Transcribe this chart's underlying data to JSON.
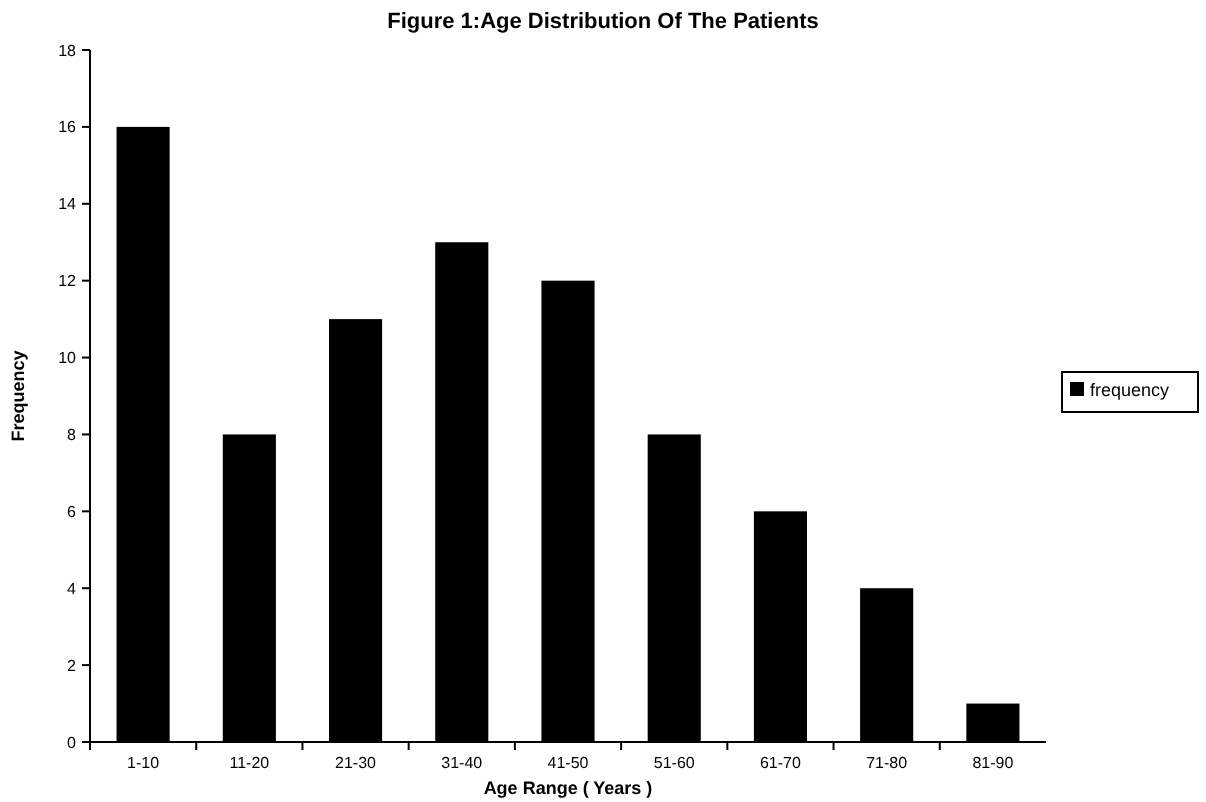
{
  "chart_data": {
    "type": "bar",
    "title": "Figure 1:Age Distribution Of The Patients",
    "xlabel": "Age Range ( Years )",
    "ylabel": "Frequency",
    "categories": [
      "1-10",
      "11-20",
      "21-30",
      "31-40",
      "41-50",
      "51-60",
      "61-70",
      "71-80",
      "81-90"
    ],
    "series": [
      {
        "name": "frequency",
        "color": "#000000",
        "values": [
          16,
          8,
          11,
          13,
          12,
          8,
          6,
          4,
          1
        ]
      }
    ],
    "ylim": [
      0,
      18
    ],
    "yticks": [
      0,
      2,
      4,
      6,
      8,
      10,
      12,
      14,
      16,
      18
    ],
    "grid": false,
    "legend": "right"
  }
}
